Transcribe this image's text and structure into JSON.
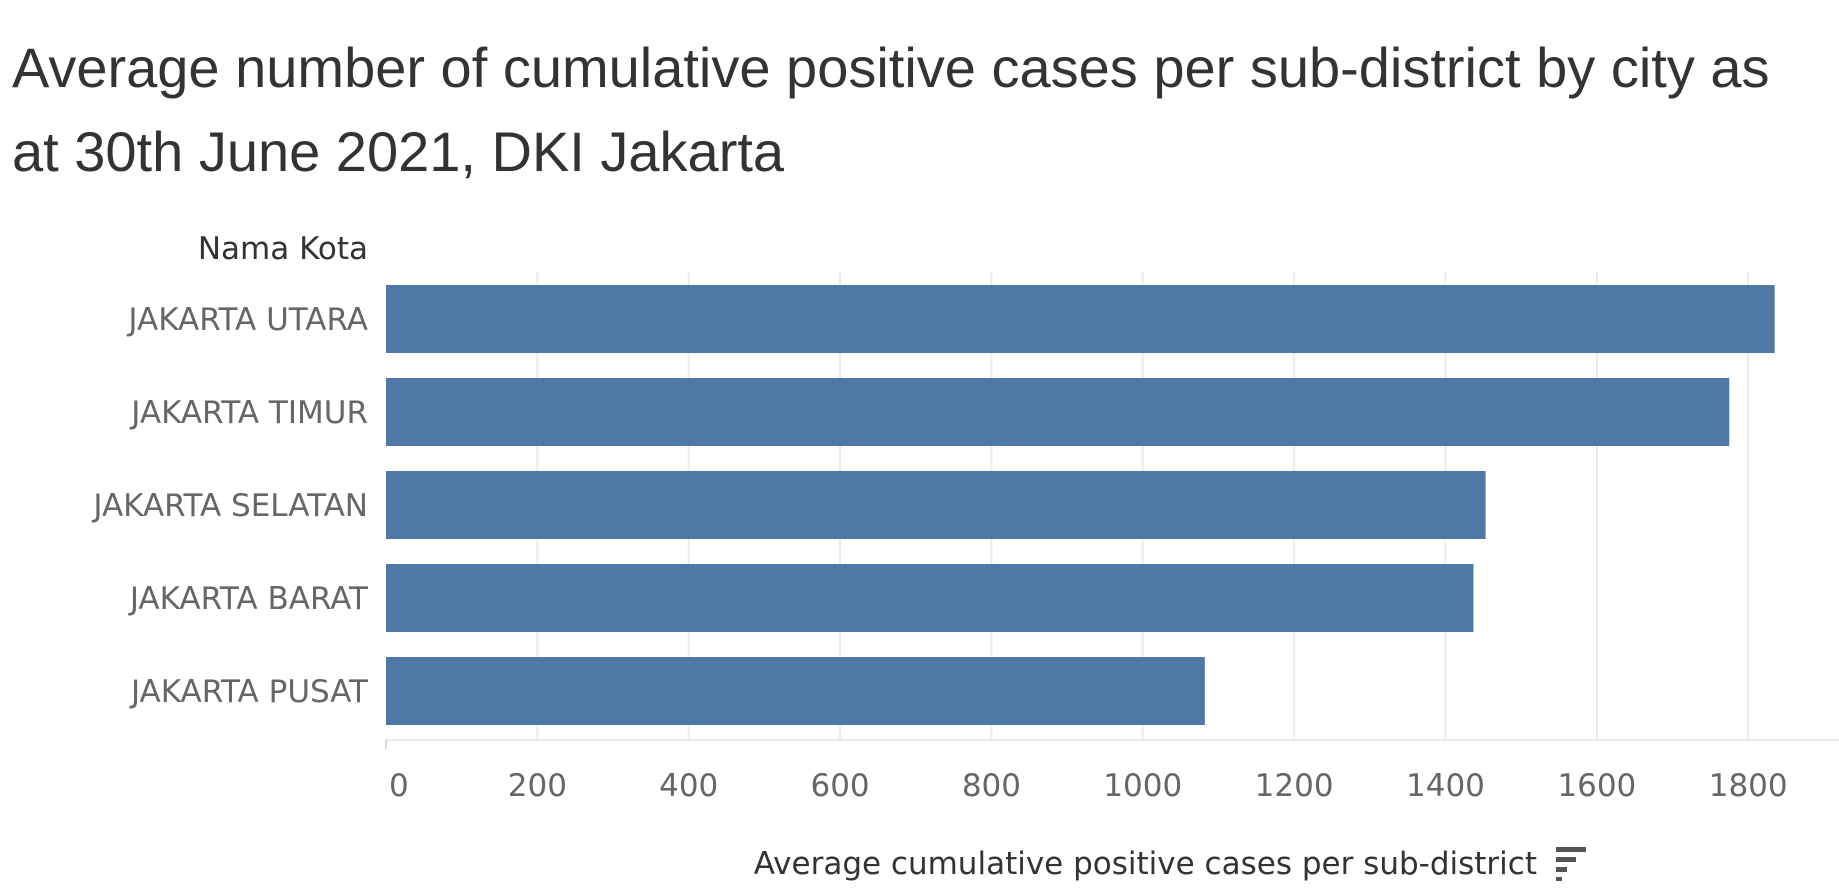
{
  "chart_data": {
    "type": "bar",
    "orientation": "horizontal",
    "title": "Average number of cumulative positive cases per sub-district by city as at 30th June 2021, DKI Jakarta",
    "ylabel": "Nama Kota",
    "xlabel": "Average cumulative positive cases per sub-district",
    "categories": [
      "JAKARTA UTARA",
      "JAKARTA TIMUR",
      "JAKARTA SELATAN",
      "JAKARTA BARAT",
      "JAKARTA PUSAT"
    ],
    "values": [
      1835,
      1775,
      1453,
      1437,
      1082
    ],
    "xlim": [
      0,
      1920
    ],
    "xticks": [
      0,
      200,
      400,
      600,
      800,
      1000,
      1200,
      1400,
      1600,
      1800
    ],
    "grid": true,
    "sort_indicator": "sorted-descending-icon",
    "colors": {
      "bar": "#4e79a7",
      "grid": "#ebebeb",
      "axis": "#d9d9d9"
    }
  }
}
